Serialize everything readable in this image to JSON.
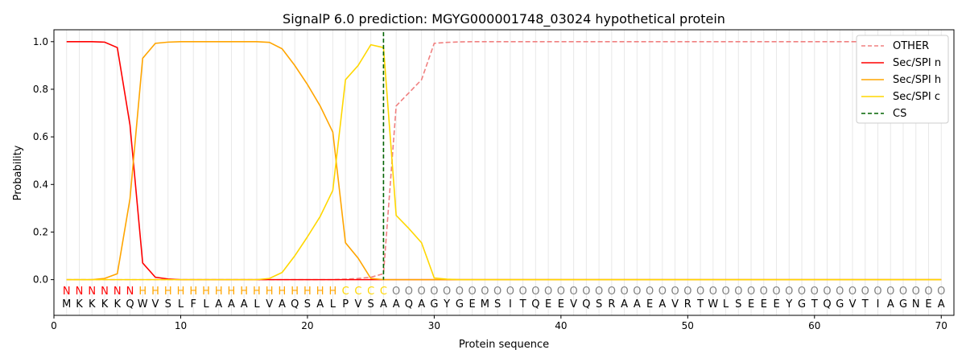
{
  "chart_data": {
    "type": "line",
    "title": "SignalP 6.0 prediction: MGYG000001748_03024 hypothetical protein",
    "xlabel": "Protein sequence",
    "ylabel": "Probability",
    "xlim": [
      0,
      71
    ],
    "ylim": [
      -0.15,
      1.05
    ],
    "xticks": [
      0,
      10,
      20,
      30,
      40,
      50,
      60,
      70
    ],
    "yticks": [
      "0.0",
      "0.2",
      "0.4",
      "0.6",
      "0.8",
      "1.0"
    ],
    "legend_position": "top-right",
    "sequence": "MKKKKQWVSLFLAAALVAQSALPVSAAQAGYGEMSITQEEVQSRAAEAVRTWLSEEEYGTQGVTIAGNEA",
    "labels": "NNNNNNHHHHHHHHHHHHHHHHCCCCOOOOOOOOOOOOOOOOOOOOOOOOOOOOOOOOOOOOOOOOOOOO",
    "label_colors": {
      "N": "#ff0000",
      "H": "#ffa500",
      "C": "#ffd700",
      "O": "#808080"
    },
    "cs": 26,
    "series": [
      {
        "name": "OTHER",
        "color": "#f08080",
        "dash": true,
        "values": [
          0,
          0,
          0,
          0,
          0,
          0,
          0,
          0,
          0,
          0,
          0,
          0,
          0,
          0,
          0,
          0,
          0,
          0,
          0,
          0,
          0,
          0,
          0.002,
          0.005,
          0.01,
          0.025,
          0.73,
          0.785,
          0.84,
          0.993,
          0.997,
          0.999,
          1,
          1,
          1,
          1,
          1,
          1,
          1,
          1,
          1,
          1,
          1,
          1,
          1,
          1,
          1,
          1,
          1,
          1,
          1,
          1,
          1,
          1,
          1,
          1,
          1,
          1,
          1,
          1,
          1,
          1,
          1,
          1,
          1,
          1,
          1,
          1,
          1,
          1
        ]
      },
      {
        "name": "Sec/SPI n",
        "color": "#ff0000",
        "values": [
          1,
          1,
          1,
          0.998,
          0.975,
          0.65,
          0.07,
          0.01,
          0.003,
          0,
          0,
          0,
          0,
          0,
          0,
          0,
          0,
          0,
          0,
          0,
          0,
          0,
          0,
          0,
          0,
          0,
          0,
          0,
          0,
          0,
          0,
          0,
          0,
          0,
          0,
          0,
          0,
          0,
          0,
          0,
          0,
          0,
          0,
          0,
          0,
          0,
          0,
          0,
          0,
          0,
          0,
          0,
          0,
          0,
          0,
          0,
          0,
          0,
          0,
          0,
          0,
          0,
          0,
          0,
          0,
          0,
          0,
          0,
          0,
          0
        ]
      },
      {
        "name": "Sec/SPI h",
        "color": "#ffa500",
        "values": [
          0,
          0,
          0,
          0.005,
          0.025,
          0.34,
          0.93,
          0.993,
          0.998,
          1,
          1,
          1,
          1,
          1,
          1,
          1,
          0.997,
          0.97,
          0.9,
          0.82,
          0.73,
          0.62,
          0.155,
          0.09,
          0.005,
          0,
          0,
          0,
          0,
          0,
          0,
          0,
          0,
          0,
          0,
          0,
          0,
          0,
          0,
          0,
          0,
          0,
          0,
          0,
          0,
          0,
          0,
          0,
          0,
          0,
          0,
          0,
          0,
          0,
          0,
          0,
          0,
          0,
          0,
          0,
          0,
          0,
          0,
          0,
          0,
          0,
          0,
          0,
          0,
          0
        ]
      },
      {
        "name": "Sec/SPI c",
        "color": "#ffd700",
        "values": [
          0,
          0,
          0,
          0,
          0,
          0,
          0,
          0,
          0,
          0,
          0,
          0,
          0,
          0,
          0,
          0,
          0.005,
          0.03,
          0.1,
          0.18,
          0.265,
          0.375,
          0.84,
          0.9,
          0.987,
          0.975,
          0.27,
          0.215,
          0.155,
          0.007,
          0.002,
          0,
          0,
          0,
          0,
          0,
          0,
          0,
          0,
          0,
          0,
          0,
          0,
          0,
          0,
          0,
          0,
          0,
          0,
          0,
          0,
          0,
          0,
          0,
          0,
          0,
          0,
          0,
          0,
          0,
          0,
          0,
          0,
          0,
          0,
          0,
          0,
          0,
          0,
          0
        ]
      }
    ],
    "cs_legend": "CS",
    "cs_color": "#006400"
  }
}
